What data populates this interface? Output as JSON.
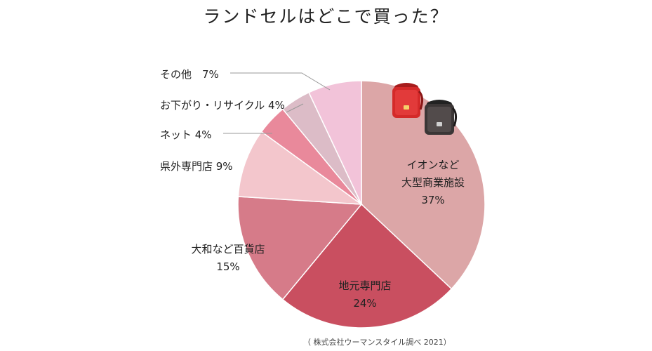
{
  "title": "ランドセルはどこで買った？",
  "source": "（ 株式会社ウーマンスタイル調べ 2021）",
  "chart_data": {
    "type": "pie",
    "title": "ランドセルはどこで買った？",
    "start": "12 o'clock",
    "direction": "clockwise",
    "slices": [
      {
        "label_lines": [
          "イオンなど",
          "大型商業施設"
        ],
        "pct_text": "37%",
        "value": 37,
        "color": "#dca6a7"
      },
      {
        "label_lines": [
          "地元専門店"
        ],
        "pct_text": "24%",
        "value": 24,
        "color": "#c94f60"
      },
      {
        "label_lines": [
          "大和など百貨店"
        ],
        "pct_text": "15%",
        "value": 15,
        "color": "#d67b89"
      },
      {
        "label_lines": [
          "県外専門店"
        ],
        "pct_text": "9%",
        "value": 9,
        "color": "#f3c6cc"
      },
      {
        "label_lines": [
          "ネット"
        ],
        "pct_text": "4%",
        "value": 4,
        "color": "#e9899b"
      },
      {
        "label_lines": [
          "お下がり・リサイクル"
        ],
        "pct_text": "4%",
        "value": 4,
        "color": "#dcbcc7"
      },
      {
        "label_lines": [
          "その他"
        ],
        "pct_text": "7%",
        "value": 7,
        "color": "#f2c3d9"
      }
    ]
  },
  "labels": {
    "aeon": {
      "line1": "イオンなど",
      "line2": "大型商業施設",
      "pct": "37%"
    },
    "local": {
      "line1": "地元専門店",
      "pct": "24%"
    },
    "dept": {
      "line1": "大和など百貨店",
      "pct": "15%"
    },
    "outside": {
      "text": "県外専門店 9%"
    },
    "net": {
      "text": "ネット 4%"
    },
    "used": {
      "text": "お下がり・リサイクル 4%"
    },
    "other": {
      "text": "その他　7%"
    }
  },
  "bag_colors": {
    "red": "#d42a2a",
    "black": "#4a4444"
  }
}
